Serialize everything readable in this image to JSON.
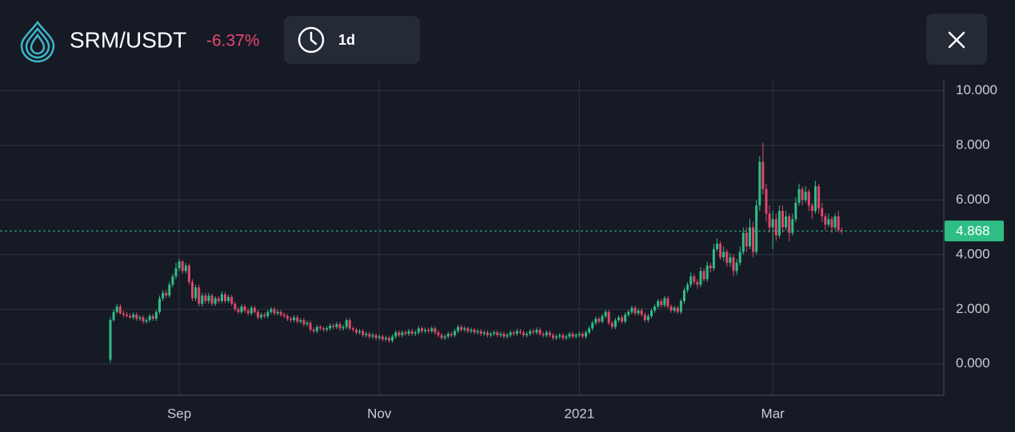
{
  "header": {
    "pair": "SRM/USDT",
    "change": "-6.37%",
    "interval": "1d"
  },
  "chart_data": {
    "type": "candlestick",
    "up_color": "#2ebd85",
    "down_color": "#e0466b",
    "grid": true,
    "ylim": [
      -1.15,
      10.4
    ],
    "yticks": [
      {
        "value": 0,
        "label": "0.000"
      },
      {
        "value": 2,
        "label": "2.000"
      },
      {
        "value": 4,
        "label": "4.000"
      },
      {
        "value": 6,
        "label": "6.000"
      },
      {
        "value": 8,
        "label": "8.000"
      },
      {
        "value": 10,
        "label": "10.000"
      }
    ],
    "last_price": 4.868,
    "categories": [
      null,
      null,
      null,
      null,
      null,
      null,
      null,
      null,
      null,
      null,
      null,
      null,
      null,
      null,
      null,
      null,
      null,
      null,
      null,
      null,
      null,
      "Sep",
      null,
      null,
      null,
      null,
      null,
      null,
      null,
      null,
      null,
      null,
      null,
      null,
      null,
      null,
      null,
      null,
      null,
      null,
      null,
      null,
      null,
      null,
      null,
      null,
      null,
      null,
      null,
      null,
      null,
      null,
      null,
      null,
      null,
      null,
      null,
      null,
      null,
      null,
      null,
      null,
      null,
      null,
      null,
      null,
      null,
      null,
      null,
      null,
      null,
      null,
      null,
      null,
      null,
      null,
      null,
      null,
      null,
      null,
      null,
      null,
      "Nov",
      null,
      null,
      null,
      null,
      null,
      null,
      null,
      null,
      null,
      null,
      null,
      null,
      null,
      null,
      null,
      null,
      null,
      null,
      null,
      null,
      null,
      null,
      null,
      null,
      null,
      null,
      null,
      null,
      null,
      null,
      null,
      null,
      null,
      null,
      null,
      null,
      null,
      null,
      null,
      null,
      null,
      null,
      null,
      null,
      null,
      null,
      null,
      null,
      null,
      null,
      null,
      null,
      null,
      null,
      null,
      null,
      null,
      null,
      null,
      null,
      "2021",
      null,
      null,
      null,
      null,
      null,
      null,
      null,
      null,
      null,
      null,
      null,
      null,
      null,
      null,
      null,
      null,
      null,
      null,
      null,
      null,
      null,
      null,
      null,
      null,
      null,
      null,
      null,
      null,
      null,
      null,
      null,
      null,
      null,
      null,
      null,
      null,
      null,
      null,
      null,
      null,
      null,
      null,
      null,
      null,
      null,
      null,
      null,
      null,
      null,
      null,
      null,
      null,
      null,
      null,
      null,
      null,
      null,
      null,
      "Mar",
      null,
      null,
      null,
      null,
      null,
      null,
      null,
      null,
      null,
      null,
      null,
      null,
      null,
      null,
      null,
      null,
      null,
      null,
      null,
      null,
      null
    ],
    "candles": [
      [
        0.15,
        1.7,
        0.05,
        1.6
      ],
      [
        1.6,
        2.0,
        1.55,
        1.9
      ],
      [
        1.9,
        2.2,
        1.85,
        2.1
      ],
      [
        2.1,
        2.2,
        1.8,
        1.85
      ],
      [
        1.85,
        1.95,
        1.7,
        1.8
      ],
      [
        1.8,
        1.9,
        1.7,
        1.75
      ],
      [
        1.75,
        1.85,
        1.65,
        1.7
      ],
      [
        1.7,
        1.88,
        1.62,
        1.8
      ],
      [
        1.8,
        1.88,
        1.57,
        1.65
      ],
      [
        1.65,
        1.78,
        1.57,
        1.7
      ],
      [
        1.7,
        1.78,
        1.47,
        1.55
      ],
      [
        1.55,
        1.68,
        1.47,
        1.6
      ],
      [
        1.6,
        1.83,
        1.52,
        1.75
      ],
      [
        1.75,
        1.83,
        1.57,
        1.65
      ],
      [
        1.65,
        1.98,
        1.57,
        1.9
      ],
      [
        1.9,
        2.5,
        1.82,
        2.4
      ],
      [
        2.4,
        2.7,
        2.3,
        2.6
      ],
      [
        2.6,
        2.7,
        2.4,
        2.5
      ],
      [
        2.5,
        3.0,
        2.42,
        2.9
      ],
      [
        2.9,
        3.3,
        2.8,
        3.2
      ],
      [
        3.2,
        3.7,
        3.1,
        3.5
      ],
      [
        3.5,
        3.85,
        3.4,
        3.75
      ],
      [
        3.75,
        3.8,
        3.3,
        3.4
      ],
      [
        3.4,
        3.7,
        3.3,
        3.6
      ],
      [
        3.6,
        3.68,
        2.9,
        3.0
      ],
      [
        3.0,
        3.1,
        2.3,
        2.4
      ],
      [
        2.4,
        2.9,
        2.3,
        2.8
      ],
      [
        2.8,
        2.9,
        2.1,
        2.2
      ],
      [
        2.2,
        2.6,
        2.1,
        2.5
      ],
      [
        2.5,
        2.6,
        2.2,
        2.3
      ],
      [
        2.3,
        2.6,
        2.2,
        2.5
      ],
      [
        2.5,
        2.58,
        2.12,
        2.2
      ],
      [
        2.2,
        2.48,
        2.12,
        2.4
      ],
      [
        2.4,
        2.48,
        2.22,
        2.3
      ],
      [
        2.3,
        2.65,
        2.22,
        2.55
      ],
      [
        2.55,
        2.63,
        2.22,
        2.3
      ],
      [
        2.3,
        2.53,
        2.22,
        2.45
      ],
      [
        2.45,
        2.53,
        2.12,
        2.2
      ],
      [
        2.2,
        2.28,
        1.92,
        2.0
      ],
      [
        2.0,
        2.08,
        1.82,
        1.9
      ],
      [
        1.9,
        2.18,
        1.82,
        2.1
      ],
      [
        2.1,
        2.18,
        1.87,
        1.95
      ],
      [
        1.95,
        2.03,
        1.77,
        1.85
      ],
      [
        1.85,
        2.13,
        1.77,
        2.05
      ],
      [
        2.05,
        2.13,
        1.82,
        1.9
      ],
      [
        1.9,
        1.98,
        1.62,
        1.7
      ],
      [
        1.7,
        1.88,
        1.62,
        1.8
      ],
      [
        1.8,
        1.88,
        1.67,
        1.75
      ],
      [
        1.75,
        1.98,
        1.67,
        1.9
      ],
      [
        1.9,
        2.08,
        1.82,
        2.0
      ],
      [
        2.0,
        2.08,
        1.77,
        1.85
      ],
      [
        1.85,
        1.98,
        1.77,
        1.9
      ],
      [
        1.9,
        1.98,
        1.72,
        1.8
      ],
      [
        1.8,
        1.88,
        1.67,
        1.75
      ],
      [
        1.75,
        1.83,
        1.57,
        1.65
      ],
      [
        1.65,
        1.73,
        1.52,
        1.6
      ],
      [
        1.6,
        1.78,
        1.52,
        1.7
      ],
      [
        1.7,
        1.78,
        1.47,
        1.55
      ],
      [
        1.55,
        1.68,
        1.47,
        1.6
      ],
      [
        1.6,
        1.68,
        1.37,
        1.45
      ],
      [
        1.45,
        1.58,
        1.37,
        1.5
      ],
      [
        1.5,
        1.58,
        1.17,
        1.25
      ],
      [
        1.25,
        1.33,
        1.12,
        1.2
      ],
      [
        1.2,
        1.43,
        1.12,
        1.35
      ],
      [
        1.35,
        1.43,
        1.22,
        1.3
      ],
      [
        1.3,
        1.38,
        1.17,
        1.25
      ],
      [
        1.25,
        1.38,
        1.17,
        1.3
      ],
      [
        1.3,
        1.48,
        1.22,
        1.4
      ],
      [
        1.4,
        1.48,
        1.27,
        1.35
      ],
      [
        1.35,
        1.53,
        1.27,
        1.45
      ],
      [
        1.45,
        1.53,
        1.22,
        1.3
      ],
      [
        1.3,
        1.43,
        1.22,
        1.35
      ],
      [
        1.35,
        1.68,
        1.27,
        1.6
      ],
      [
        1.6,
        1.68,
        1.22,
        1.3
      ],
      [
        1.3,
        1.38,
        1.17,
        1.25
      ],
      [
        1.25,
        1.33,
        1.07,
        1.15
      ],
      [
        1.15,
        1.28,
        1.07,
        1.2
      ],
      [
        1.2,
        1.28,
        0.97,
        1.05
      ],
      [
        1.05,
        1.18,
        0.97,
        1.1
      ],
      [
        1.1,
        1.18,
        0.92,
        1.0
      ],
      [
        1.0,
        1.13,
        0.92,
        1.05
      ],
      [
        1.05,
        1.13,
        0.87,
        0.95
      ],
      [
        0.95,
        1.08,
        0.87,
        1.0
      ],
      [
        1.0,
        1.08,
        0.82,
        0.9
      ],
      [
        0.9,
        1.03,
        0.82,
        0.95
      ],
      [
        0.95,
        1.03,
        0.77,
        0.85
      ],
      [
        0.85,
        1.08,
        0.77,
        1.0
      ],
      [
        1.0,
        1.23,
        0.92,
        1.15
      ],
      [
        1.15,
        1.23,
        0.97,
        1.05
      ],
      [
        1.05,
        1.23,
        0.97,
        1.15
      ],
      [
        1.15,
        1.23,
        1.02,
        1.1
      ],
      [
        1.1,
        1.28,
        1.02,
        1.2
      ],
      [
        1.2,
        1.28,
        1.02,
        1.1
      ],
      [
        1.1,
        1.23,
        1.02,
        1.15
      ],
      [
        1.15,
        1.38,
        1.07,
        1.3
      ],
      [
        1.3,
        1.38,
        1.12,
        1.2
      ],
      [
        1.2,
        1.33,
        1.12,
        1.25
      ],
      [
        1.25,
        1.33,
        1.12,
        1.2
      ],
      [
        1.2,
        1.38,
        1.12,
        1.3
      ],
      [
        1.3,
        1.38,
        1.07,
        1.15
      ],
      [
        1.15,
        1.23,
        0.97,
        1.05
      ],
      [
        1.05,
        1.13,
        0.87,
        0.95
      ],
      [
        0.95,
        1.08,
        0.87,
        1.0
      ],
      [
        1.0,
        1.18,
        0.92,
        1.1
      ],
      [
        1.1,
        1.18,
        0.97,
        1.05
      ],
      [
        1.05,
        1.28,
        0.97,
        1.2
      ],
      [
        1.2,
        1.43,
        1.12,
        1.35
      ],
      [
        1.35,
        1.43,
        1.17,
        1.25
      ],
      [
        1.25,
        1.38,
        1.17,
        1.3
      ],
      [
        1.3,
        1.38,
        1.12,
        1.2
      ],
      [
        1.2,
        1.33,
        1.12,
        1.25
      ],
      [
        1.25,
        1.33,
        1.07,
        1.15
      ],
      [
        1.15,
        1.28,
        1.07,
        1.2
      ],
      [
        1.2,
        1.28,
        1.02,
        1.1
      ],
      [
        1.1,
        1.23,
        1.02,
        1.15
      ],
      [
        1.15,
        1.23,
        0.97,
        1.05
      ],
      [
        1.05,
        1.18,
        0.97,
        1.1
      ],
      [
        1.1,
        1.23,
        1.02,
        1.15
      ],
      [
        1.15,
        1.23,
        0.97,
        1.05
      ],
      [
        1.05,
        1.18,
        0.97,
        1.1
      ],
      [
        1.1,
        1.18,
        0.92,
        1.0
      ],
      [
        1.0,
        1.13,
        0.92,
        1.05
      ],
      [
        1.05,
        1.23,
        0.97,
        1.15
      ],
      [
        1.15,
        1.23,
        1.02,
        1.1
      ],
      [
        1.1,
        1.28,
        1.02,
        1.2
      ],
      [
        1.2,
        1.28,
        1.07,
        1.15
      ],
      [
        1.15,
        1.23,
        0.97,
        1.05
      ],
      [
        1.05,
        1.18,
        0.97,
        1.1
      ],
      [
        1.1,
        1.28,
        1.02,
        1.2
      ],
      [
        1.2,
        1.28,
        1.07,
        1.15
      ],
      [
        1.15,
        1.33,
        1.07,
        1.25
      ],
      [
        1.25,
        1.33,
        1.02,
        1.1
      ],
      [
        1.1,
        1.18,
        0.97,
        1.05
      ],
      [
        1.05,
        1.23,
        0.97,
        1.15
      ],
      [
        1.15,
        1.23,
        0.97,
        1.05
      ],
      [
        1.05,
        1.13,
        0.87,
        0.95
      ],
      [
        0.95,
        1.08,
        0.87,
        1.0
      ],
      [
        1.0,
        1.13,
        0.92,
        1.05
      ],
      [
        1.05,
        1.13,
        0.87,
        0.95
      ],
      [
        0.95,
        1.08,
        0.87,
        1.0
      ],
      [
        1.0,
        1.18,
        0.92,
        1.1
      ],
      [
        1.1,
        1.18,
        0.92,
        1.0
      ],
      [
        1.0,
        1.13,
        0.92,
        1.05
      ],
      [
        1.05,
        1.18,
        0.97,
        1.1
      ],
      [
        1.1,
        1.18,
        0.92,
        1.0
      ],
      [
        1.0,
        1.23,
        0.92,
        1.15
      ],
      [
        1.15,
        1.38,
        1.07,
        1.3
      ],
      [
        1.3,
        1.58,
        1.22,
        1.5
      ],
      [
        1.5,
        1.73,
        1.42,
        1.65
      ],
      [
        1.65,
        1.73,
        1.47,
        1.55
      ],
      [
        1.55,
        1.83,
        1.47,
        1.75
      ],
      [
        1.75,
        1.98,
        1.67,
        1.9
      ],
      [
        1.9,
        1.98,
        1.42,
        1.5
      ],
      [
        1.5,
        1.58,
        1.27,
        1.35
      ],
      [
        1.35,
        1.68,
        1.27,
        1.6
      ],
      [
        1.6,
        1.78,
        1.52,
        1.7
      ],
      [
        1.7,
        1.78,
        1.47,
        1.55
      ],
      [
        1.55,
        1.88,
        1.47,
        1.8
      ],
      [
        1.8,
        1.98,
        1.72,
        1.9
      ],
      [
        1.9,
        2.13,
        1.82,
        2.05
      ],
      [
        2.05,
        2.13,
        1.77,
        1.85
      ],
      [
        1.85,
        2.03,
        1.77,
        1.95
      ],
      [
        1.95,
        2.03,
        1.72,
        1.8
      ],
      [
        1.8,
        1.88,
        1.52,
        1.6
      ],
      [
        1.6,
        1.83,
        1.52,
        1.75
      ],
      [
        1.75,
        2.03,
        1.67,
        1.95
      ],
      [
        1.95,
        2.18,
        1.87,
        2.1
      ],
      [
        2.1,
        2.38,
        2.02,
        2.3
      ],
      [
        2.3,
        2.38,
        2.07,
        2.15
      ],
      [
        2.15,
        2.48,
        2.07,
        2.4
      ],
      [
        2.4,
        2.48,
        2.02,
        2.1
      ],
      [
        2.1,
        2.18,
        1.87,
        1.95
      ],
      [
        1.95,
        2.13,
        1.87,
        2.05
      ],
      [
        2.05,
        2.13,
        1.82,
        1.9
      ],
      [
        1.9,
        2.38,
        1.82,
        2.3
      ],
      [
        2.3,
        2.8,
        2.2,
        2.7
      ],
      [
        2.7,
        3.0,
        2.6,
        2.9
      ],
      [
        2.9,
        3.35,
        2.8,
        3.2
      ],
      [
        3.2,
        3.3,
        2.9,
        3.0
      ],
      [
        3.0,
        3.1,
        2.75,
        2.9
      ],
      [
        2.9,
        3.55,
        2.8,
        3.4
      ],
      [
        3.4,
        3.5,
        3.0,
        3.1
      ],
      [
        3.1,
        3.75,
        3.0,
        3.6
      ],
      [
        3.6,
        3.7,
        3.35,
        3.5
      ],
      [
        3.5,
        4.4,
        3.4,
        4.2
      ],
      [
        4.2,
        4.6,
        4.1,
        4.4
      ],
      [
        4.4,
        4.5,
        3.8,
        3.9
      ],
      [
        3.9,
        4.3,
        3.75,
        4.1
      ],
      [
        4.1,
        4.2,
        3.55,
        3.7
      ],
      [
        3.7,
        4.05,
        3.55,
        3.9
      ],
      [
        3.9,
        4.0,
        3.2,
        3.4
      ],
      [
        3.4,
        3.85,
        3.25,
        3.7
      ],
      [
        3.7,
        4.3,
        3.6,
        4.1
      ],
      [
        4.1,
        5.0,
        4.0,
        4.8
      ],
      [
        4.8,
        5.0,
        4.1,
        4.3
      ],
      [
        4.3,
        5.3,
        4.2,
        5.0
      ],
      [
        5.0,
        5.2,
        3.9,
        4.1
      ],
      [
        4.1,
        6.0,
        4.0,
        5.8
      ],
      [
        5.8,
        7.6,
        5.6,
        7.4
      ],
      [
        7.4,
        8.1,
        6.2,
        6.4
      ],
      [
        6.4,
        6.6,
        5.2,
        5.5
      ],
      [
        5.5,
        5.8,
        4.8,
        5.0
      ],
      [
        5.0,
        5.6,
        4.2,
        5.3
      ],
      [
        5.3,
        5.5,
        4.5,
        4.7
      ],
      [
        4.7,
        5.8,
        4.6,
        5.6
      ],
      [
        5.6,
        5.8,
        4.8,
        5.0
      ],
      [
        5.0,
        5.6,
        4.9,
        5.4
      ],
      [
        5.4,
        5.5,
        4.5,
        4.8
      ],
      [
        4.8,
        5.5,
        4.7,
        5.3
      ],
      [
        5.3,
        6.1,
        5.2,
        5.9
      ],
      [
        5.9,
        6.6,
        5.8,
        6.4
      ],
      [
        6.4,
        6.5,
        5.8,
        6.0
      ],
      [
        6.0,
        6.5,
        5.9,
        6.3
      ],
      [
        6.3,
        6.4,
        5.6,
        5.8
      ],
      [
        5.8,
        5.9,
        5.3,
        5.6
      ],
      [
        5.6,
        6.7,
        5.5,
        6.5
      ],
      [
        6.5,
        6.6,
        5.5,
        5.7
      ],
      [
        5.7,
        5.9,
        5.2,
        5.4
      ],
      [
        5.4,
        5.5,
        4.9,
        5.1
      ],
      [
        5.1,
        5.5,
        5.0,
        5.3
      ],
      [
        5.3,
        5.4,
        4.8,
        5.0
      ],
      [
        5.0,
        5.5,
        4.9,
        5.4
      ],
      [
        5.4,
        5.6,
        4.8,
        4.9
      ],
      [
        4.9,
        5.0,
        4.75,
        4.868
      ]
    ]
  }
}
